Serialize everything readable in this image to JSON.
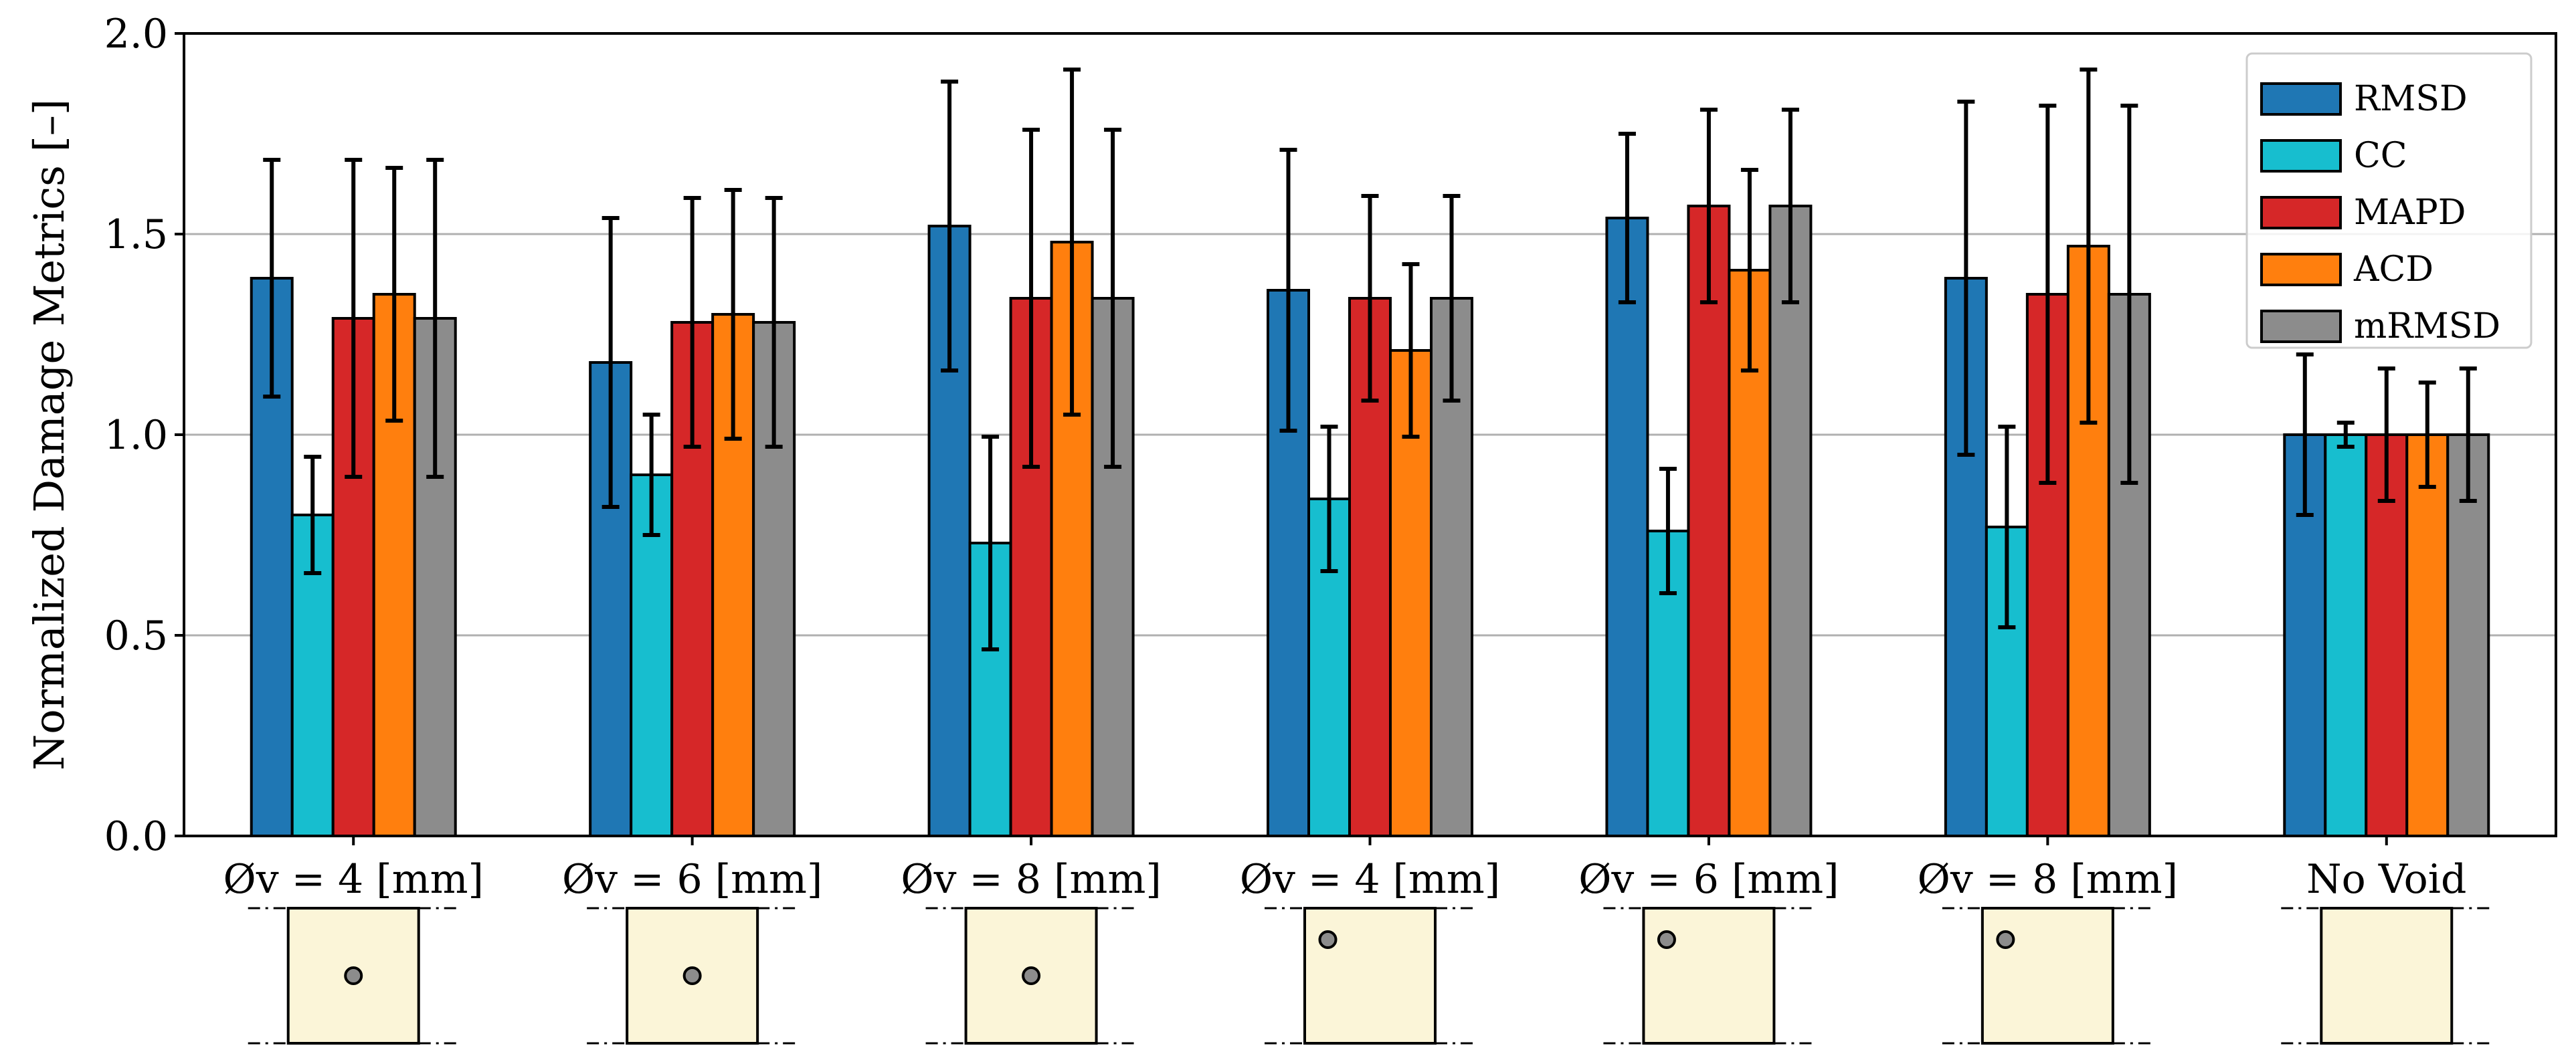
{
  "chart_data": {
    "type": "bar",
    "ylabel": "Normalized Damage Metrics [–]",
    "ylim": [
      0,
      2.0
    ],
    "yticks": [
      "0.0",
      "0.5",
      "1.0",
      "1.5",
      "2.0"
    ],
    "ytick_values": [
      0,
      0.5,
      1.0,
      1.5,
      2.0
    ],
    "grid": "horizontal",
    "legend_position": "top-right",
    "categories": [
      "Øv = 4 [mm]",
      "Øv = 6 [mm]",
      "Øv = 8 [mm]",
      "Øv = 4 [mm]",
      "Øv = 6 [mm]",
      "Øv = 8 [mm]",
      "No Void"
    ],
    "void_position": [
      "center",
      "center",
      "center",
      "corner",
      "corner",
      "corner",
      "none"
    ],
    "series": [
      {
        "name": "RMSD",
        "color": "#1f77b4",
        "values": [
          1.39,
          1.18,
          1.52,
          1.36,
          1.54,
          1.39,
          1.0
        ],
        "errors": [
          0.295,
          0.36,
          0.36,
          0.35,
          0.21,
          0.44,
          0.2
        ]
      },
      {
        "name": "CC",
        "color": "#17becf",
        "values": [
          0.8,
          0.9,
          0.73,
          0.84,
          0.76,
          0.77,
          1.0
        ],
        "errors": [
          0.145,
          0.15,
          0.265,
          0.18,
          0.155,
          0.25,
          0.03
        ]
      },
      {
        "name": "MAPD",
        "color": "#d62728",
        "values": [
          1.29,
          1.28,
          1.34,
          1.34,
          1.57,
          1.35,
          1.0
        ],
        "errors": [
          0.395,
          0.31,
          0.42,
          0.255,
          0.24,
          0.47,
          0.165
        ]
      },
      {
        "name": "ACD",
        "color": "#ff7f0e",
        "values": [
          1.35,
          1.3,
          1.48,
          1.21,
          1.41,
          1.47,
          1.0
        ],
        "errors": [
          0.315,
          0.31,
          0.43,
          0.215,
          0.25,
          0.44,
          0.13
        ]
      },
      {
        "name": "mRMSD",
        "color": "#8c8c8c",
        "values": [
          1.29,
          1.28,
          1.34,
          1.34,
          1.57,
          1.35,
          1.0
        ],
        "errors": [
          0.395,
          0.31,
          0.42,
          0.255,
          0.24,
          0.47,
          0.165
        ]
      }
    ]
  }
}
